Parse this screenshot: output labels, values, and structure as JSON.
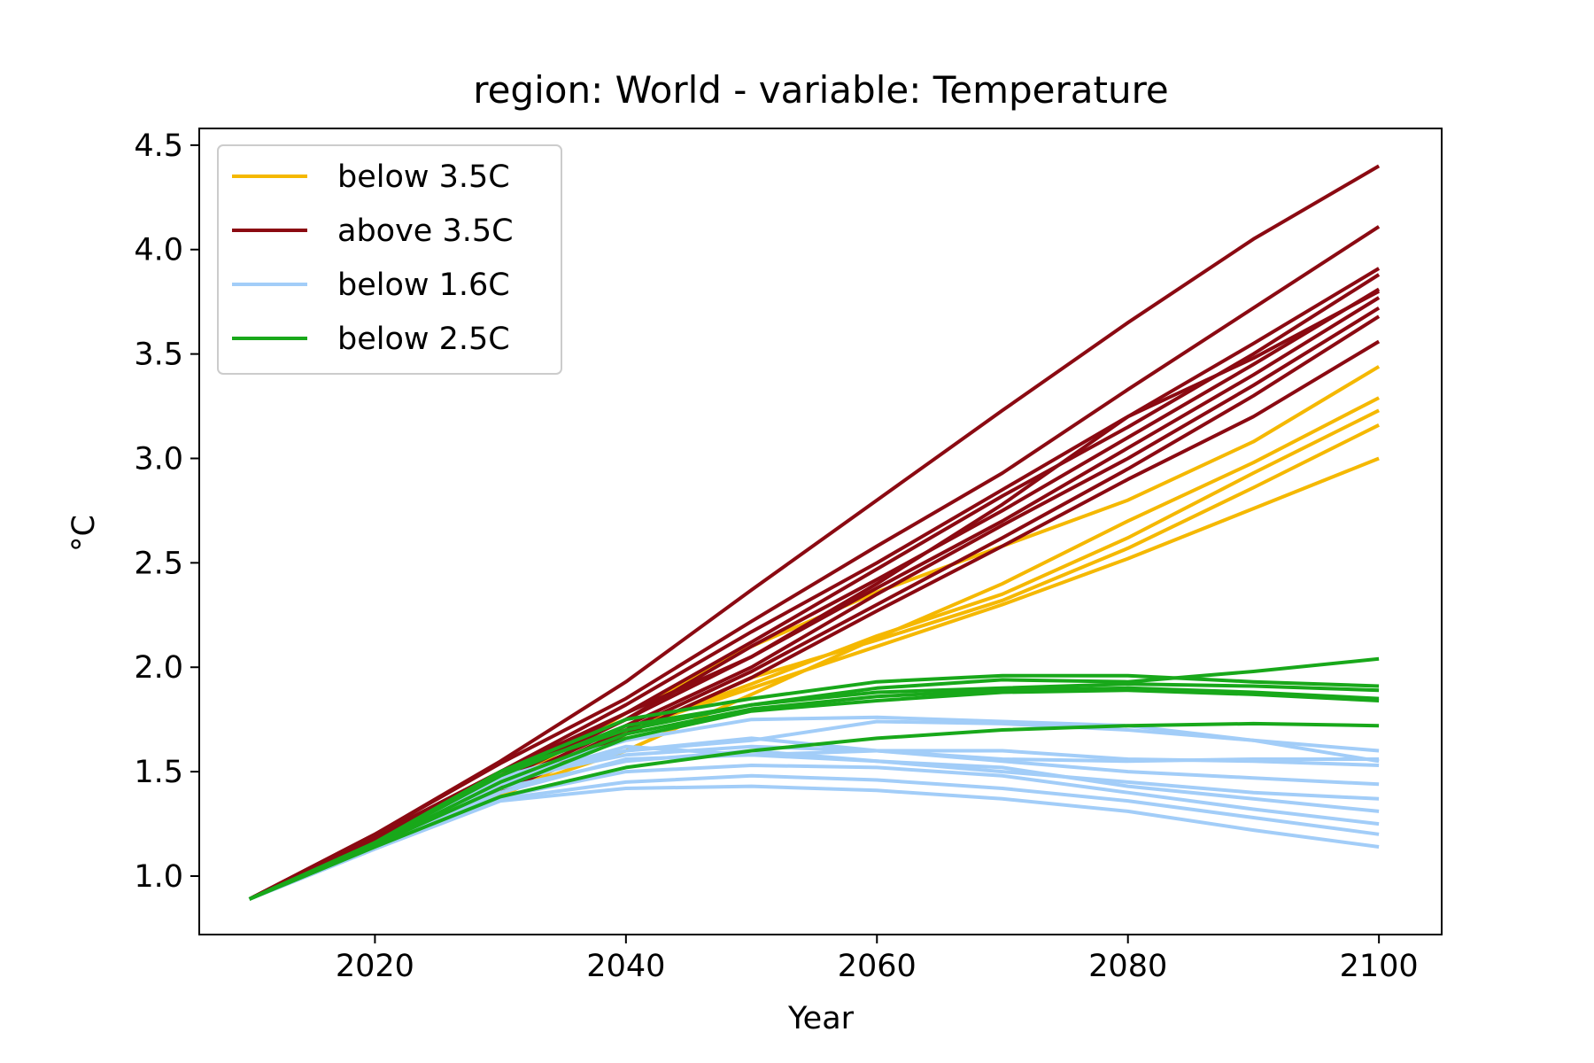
{
  "chart_data": {
    "type": "line",
    "title": "region: World - variable: Temperature",
    "xlabel": "Year",
    "ylabel": "°C",
    "xlim": [
      2006,
      2105
    ],
    "ylim": [
      0.72,
      4.58
    ],
    "x": [
      2010,
      2020,
      2030,
      2040,
      2050,
      2060,
      2070,
      2080,
      2090,
      2100
    ],
    "xticks": [
      2020,
      2040,
      2060,
      2080,
      2100
    ],
    "xtick_labels": [
      "2020",
      "2040",
      "2060",
      "2080",
      "2100"
    ],
    "yticks": [
      1.0,
      1.5,
      2.0,
      2.5,
      3.0,
      3.5,
      4.0,
      4.5
    ],
    "ytick_labels": [
      "1.0",
      "1.5",
      "2.0",
      "2.5",
      "3.0",
      "3.5",
      "4.0",
      "4.5"
    ],
    "grid": false,
    "legend_position": "top-left",
    "groups": [
      {
        "name": "below 3.5C",
        "color": "#f5b800",
        "series": [
          [
            0.89,
            1.16,
            1.43,
            1.78,
            2.1,
            2.36,
            2.58,
            2.8,
            3.08,
            3.44
          ],
          [
            0.89,
            1.16,
            1.4,
            1.6,
            1.87,
            2.14,
            2.4,
            2.7,
            2.98,
            3.29
          ],
          [
            0.89,
            1.15,
            1.38,
            1.7,
            1.92,
            2.15,
            2.35,
            2.62,
            2.93,
            3.23
          ],
          [
            0.89,
            1.15,
            1.38,
            1.68,
            1.95,
            2.13,
            2.32,
            2.57,
            2.86,
            3.16
          ],
          [
            0.89,
            1.14,
            1.4,
            1.7,
            1.9,
            2.1,
            2.3,
            2.52,
            2.76,
            3.0
          ]
        ]
      },
      {
        "name": "above 3.5C",
        "color": "#8b0a12",
        "series": [
          [
            0.89,
            1.2,
            1.55,
            1.93,
            2.37,
            2.8,
            3.23,
            3.65,
            4.05,
            4.4
          ],
          [
            0.89,
            1.2,
            1.54,
            1.85,
            2.22,
            2.58,
            2.93,
            3.33,
            3.72,
            4.11
          ],
          [
            0.89,
            1.19,
            1.5,
            1.82,
            2.17,
            2.5,
            2.85,
            3.2,
            3.55,
            3.91
          ],
          [
            0.89,
            1.19,
            1.5,
            1.78,
            2.12,
            2.47,
            2.82,
            3.15,
            3.5,
            3.88
          ],
          [
            0.89,
            1.19,
            1.48,
            1.75,
            2.1,
            2.42,
            2.75,
            3.1,
            3.45,
            3.81
          ],
          [
            0.89,
            1.18,
            1.47,
            1.78,
            2.05,
            2.4,
            2.78,
            3.2,
            3.48,
            3.8
          ],
          [
            0.89,
            1.18,
            1.46,
            1.75,
            2.05,
            2.38,
            2.7,
            3.05,
            3.4,
            3.77
          ],
          [
            0.89,
            1.18,
            1.44,
            1.72,
            2.0,
            2.35,
            2.68,
            3.0,
            3.35,
            3.72
          ],
          [
            0.89,
            1.18,
            1.42,
            1.7,
            1.98,
            2.3,
            2.62,
            2.95,
            3.3,
            3.68
          ],
          [
            0.89,
            1.18,
            1.4,
            1.68,
            1.95,
            2.27,
            2.58,
            2.9,
            3.2,
            3.56
          ]
        ]
      },
      {
        "name": "below 1.6C",
        "color": "#a2cdf8",
        "series": [
          [
            0.89,
            1.15,
            1.48,
            1.6,
            1.65,
            1.74,
            1.73,
            1.7,
            1.65,
            1.6
          ],
          [
            0.89,
            1.15,
            1.47,
            1.65,
            1.75,
            1.76,
            1.74,
            1.72,
            1.65,
            1.55
          ],
          [
            0.89,
            1.15,
            1.46,
            1.58,
            1.62,
            1.6,
            1.56,
            1.55,
            1.56,
            1.56
          ],
          [
            0.89,
            1.14,
            1.45,
            1.62,
            1.58,
            1.6,
            1.6,
            1.56,
            1.55,
            1.53
          ],
          [
            0.89,
            1.14,
            1.44,
            1.6,
            1.66,
            1.6,
            1.55,
            1.5,
            1.47,
            1.44
          ],
          [
            0.89,
            1.14,
            1.42,
            1.55,
            1.6,
            1.55,
            1.5,
            1.45,
            1.4,
            1.37
          ],
          [
            0.89,
            1.14,
            1.4,
            1.56,
            1.58,
            1.55,
            1.52,
            1.43,
            1.37,
            1.31
          ],
          [
            0.89,
            1.13,
            1.38,
            1.5,
            1.53,
            1.52,
            1.48,
            1.4,
            1.32,
            1.25
          ],
          [
            0.89,
            1.13,
            1.37,
            1.45,
            1.48,
            1.46,
            1.42,
            1.36,
            1.28,
            1.2
          ],
          [
            0.89,
            1.13,
            1.36,
            1.42,
            1.43,
            1.41,
            1.37,
            1.31,
            1.22,
            1.14
          ]
        ]
      },
      {
        "name": "below 2.5C",
        "color": "#18a81a",
        "series": [
          [
            0.89,
            1.16,
            1.5,
            1.7,
            1.82,
            1.9,
            1.94,
            1.93,
            1.98,
            2.04
          ],
          [
            0.89,
            1.16,
            1.5,
            1.75,
            1.85,
            1.93,
            1.96,
            1.96,
            1.93,
            1.91
          ],
          [
            0.89,
            1.16,
            1.48,
            1.72,
            1.82,
            1.88,
            1.9,
            1.92,
            1.91,
            1.89
          ],
          [
            0.89,
            1.15,
            1.45,
            1.68,
            1.8,
            1.86,
            1.89,
            1.9,
            1.88,
            1.85
          ],
          [
            0.89,
            1.15,
            1.42,
            1.66,
            1.79,
            1.84,
            1.88,
            1.89,
            1.87,
            1.84
          ],
          [
            0.89,
            1.14,
            1.38,
            1.52,
            1.6,
            1.66,
            1.7,
            1.72,
            1.73,
            1.72
          ]
        ]
      }
    ]
  }
}
